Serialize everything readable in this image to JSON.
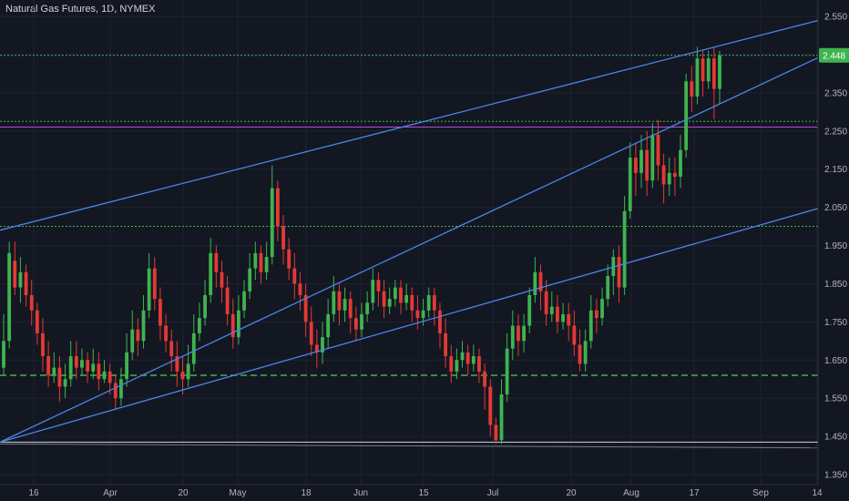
{
  "title": {
    "symbol": "Natural Gas Futures",
    "interval": "1D",
    "exchange": "NYMEX"
  },
  "colors": {
    "background": "#131722",
    "grid": "#1f2331",
    "up": "#26a69a",
    "up_bright": "#3fb34f",
    "down": "#e53935",
    "trendline": "#4a86e8",
    "hline_green": "#4caf50",
    "hline_magenta": "#b24bd6",
    "hline_white": "#d1d4dc",
    "price_tag": "#3fb34f"
  },
  "chart_data": {
    "type": "candlestick",
    "yaxis": {
      "ticks": [
        "2.550",
        "2.450",
        "2.350",
        "2.250",
        "2.150",
        "2.050",
        "1.950",
        "1.850",
        "1.750",
        "1.650",
        "1.550",
        "1.450",
        "1.350"
      ],
      "range": [
        1.33,
        2.58
      ]
    },
    "xaxis": {
      "ticks": [
        "16",
        "Apr",
        "20",
        "May",
        "18",
        "Jun",
        "15",
        "Jul",
        "20",
        "Aug",
        "17",
        "Sep",
        "14"
      ]
    },
    "last_price": "2.448",
    "candles": [
      [
        1.63,
        1.7,
        1.61,
        1.77
      ],
      [
        1.7,
        1.93,
        1.68,
        1.96
      ],
      [
        1.91,
        1.84,
        1.82,
        1.96
      ],
      [
        1.84,
        1.88,
        1.8,
        1.92
      ],
      [
        1.88,
        1.82,
        1.79,
        1.9
      ],
      [
        1.82,
        1.78,
        1.74,
        1.86
      ],
      [
        1.78,
        1.72,
        1.69,
        1.8
      ],
      [
        1.72,
        1.66,
        1.62,
        1.76
      ],
      [
        1.66,
        1.61,
        1.58,
        1.7
      ],
      [
        1.61,
        1.63,
        1.59,
        1.67
      ],
      [
        1.63,
        1.58,
        1.54,
        1.66
      ],
      [
        1.58,
        1.6,
        1.55,
        1.64
      ],
      [
        1.6,
        1.66,
        1.58,
        1.7
      ],
      [
        1.66,
        1.63,
        1.6,
        1.7
      ],
      [
        1.63,
        1.65,
        1.61,
        1.68
      ],
      [
        1.65,
        1.62,
        1.59,
        1.67
      ],
      [
        1.62,
        1.64,
        1.6,
        1.68
      ],
      [
        1.64,
        1.6,
        1.57,
        1.67
      ],
      [
        1.6,
        1.62,
        1.59,
        1.65
      ],
      [
        1.62,
        1.59,
        1.56,
        1.64
      ],
      [
        1.59,
        1.55,
        1.52,
        1.61
      ],
      [
        1.55,
        1.6,
        1.53,
        1.63
      ],
      [
        1.6,
        1.67,
        1.58,
        1.72
      ],
      [
        1.67,
        1.73,
        1.65,
        1.78
      ],
      [
        1.73,
        1.7,
        1.66,
        1.76
      ],
      [
        1.7,
        1.78,
        1.68,
        1.82
      ],
      [
        1.78,
        1.89,
        1.76,
        1.93
      ],
      [
        1.89,
        1.81,
        1.78,
        1.92
      ],
      [
        1.81,
        1.74,
        1.7,
        1.84
      ],
      [
        1.74,
        1.7,
        1.67,
        1.77
      ],
      [
        1.7,
        1.66,
        1.62,
        1.73
      ],
      [
        1.66,
        1.62,
        1.58,
        1.7
      ],
      [
        1.62,
        1.6,
        1.56,
        1.66
      ],
      [
        1.6,
        1.64,
        1.58,
        1.69
      ],
      [
        1.64,
        1.72,
        1.62,
        1.77
      ],
      [
        1.72,
        1.76,
        1.7,
        1.8
      ],
      [
        1.76,
        1.82,
        1.74,
        1.86
      ],
      [
        1.82,
        1.93,
        1.8,
        1.97
      ],
      [
        1.93,
        1.88,
        1.84,
        1.95
      ],
      [
        1.88,
        1.84,
        1.8,
        1.91
      ],
      [
        1.84,
        1.77,
        1.74,
        1.87
      ],
      [
        1.77,
        1.71,
        1.68,
        1.81
      ],
      [
        1.71,
        1.78,
        1.69,
        1.82
      ],
      [
        1.78,
        1.83,
        1.76,
        1.86
      ],
      [
        1.83,
        1.89,
        1.81,
        1.93
      ],
      [
        1.89,
        1.93,
        1.86,
        1.96
      ],
      [
        1.93,
        1.88,
        1.85,
        1.95
      ],
      [
        1.88,
        1.92,
        1.86,
        1.96
      ],
      [
        1.92,
        2.1,
        1.9,
        2.16
      ],
      [
        2.1,
        2.0,
        1.96,
        2.12
      ],
      [
        2.0,
        1.94,
        1.9,
        2.03
      ],
      [
        1.94,
        1.89,
        1.86,
        1.97
      ],
      [
        1.89,
        1.85,
        1.81,
        1.93
      ],
      [
        1.85,
        1.82,
        1.78,
        1.88
      ],
      [
        1.82,
        1.75,
        1.71,
        1.85
      ],
      [
        1.75,
        1.69,
        1.66,
        1.79
      ],
      [
        1.69,
        1.67,
        1.63,
        1.73
      ],
      [
        1.67,
        1.71,
        1.64,
        1.75
      ],
      [
        1.71,
        1.77,
        1.68,
        1.81
      ],
      [
        1.77,
        1.83,
        1.75,
        1.87
      ],
      [
        1.83,
        1.78,
        1.74,
        1.85
      ],
      [
        1.78,
        1.81,
        1.75,
        1.84
      ],
      [
        1.81,
        1.76,
        1.72,
        1.83
      ],
      [
        1.76,
        1.73,
        1.7,
        1.79
      ],
      [
        1.73,
        1.77,
        1.71,
        1.8
      ],
      [
        1.77,
        1.8,
        1.75,
        1.83
      ],
      [
        1.8,
        1.86,
        1.78,
        1.89
      ],
      [
        1.86,
        1.83,
        1.79,
        1.88
      ],
      [
        1.83,
        1.79,
        1.76,
        1.86
      ],
      [
        1.79,
        1.81,
        1.77,
        1.84
      ],
      [
        1.81,
        1.84,
        1.79,
        1.86
      ],
      [
        1.84,
        1.8,
        1.77,
        1.86
      ],
      [
        1.8,
        1.82,
        1.78,
        1.85
      ],
      [
        1.82,
        1.78,
        1.75,
        1.84
      ],
      [
        1.78,
        1.76,
        1.73,
        1.82
      ],
      [
        1.76,
        1.78,
        1.74,
        1.81
      ],
      [
        1.78,
        1.82,
        1.76,
        1.84
      ],
      [
        1.82,
        1.78,
        1.74,
        1.84
      ],
      [
        1.78,
        1.72,
        1.68,
        1.8
      ],
      [
        1.72,
        1.66,
        1.63,
        1.76
      ],
      [
        1.66,
        1.62,
        1.59,
        1.69
      ],
      [
        1.62,
        1.65,
        1.6,
        1.68
      ],
      [
        1.65,
        1.67,
        1.63,
        1.7
      ],
      [
        1.67,
        1.64,
        1.61,
        1.69
      ],
      [
        1.64,
        1.66,
        1.62,
        1.69
      ],
      [
        1.66,
        1.62,
        1.59,
        1.68
      ],
      [
        1.62,
        1.58,
        1.52,
        1.64
      ],
      [
        1.58,
        1.48,
        1.45,
        1.6
      ],
      [
        1.48,
        1.44,
        1.43,
        1.5
      ],
      [
        1.44,
        1.56,
        1.43,
        1.6
      ],
      [
        1.56,
        1.68,
        1.54,
        1.72
      ],
      [
        1.68,
        1.74,
        1.65,
        1.78
      ],
      [
        1.74,
        1.7,
        1.66,
        1.77
      ],
      [
        1.7,
        1.74,
        1.67,
        1.77
      ],
      [
        1.74,
        1.82,
        1.72,
        1.84
      ],
      [
        1.82,
        1.88,
        1.8,
        1.92
      ],
      [
        1.88,
        1.83,
        1.78,
        1.9
      ],
      [
        1.83,
        1.77,
        1.74,
        1.86
      ],
      [
        1.77,
        1.79,
        1.75,
        1.83
      ],
      [
        1.79,
        1.75,
        1.72,
        1.82
      ],
      [
        1.75,
        1.77,
        1.73,
        1.8
      ],
      [
        1.77,
        1.74,
        1.7,
        1.8
      ],
      [
        1.74,
        1.69,
        1.66,
        1.78
      ],
      [
        1.69,
        1.64,
        1.62,
        1.73
      ],
      [
        1.64,
        1.7,
        1.62,
        1.73
      ],
      [
        1.7,
        1.78,
        1.68,
        1.82
      ],
      [
        1.78,
        1.76,
        1.72,
        1.81
      ],
      [
        1.76,
        1.81,
        1.74,
        1.84
      ],
      [
        1.81,
        1.87,
        1.79,
        1.9
      ],
      [
        1.87,
        1.92,
        1.82,
        1.94
      ],
      [
        1.92,
        1.84,
        1.8,
        1.95
      ],
      [
        1.84,
        2.04,
        1.82,
        2.08
      ],
      [
        2.04,
        2.18,
        2.02,
        2.22
      ],
      [
        2.18,
        2.14,
        2.08,
        2.22
      ],
      [
        2.14,
        2.2,
        2.1,
        2.24
      ],
      [
        2.2,
        2.12,
        2.08,
        2.25
      ],
      [
        2.12,
        2.24,
        2.1,
        2.27
      ],
      [
        2.24,
        2.16,
        2.12,
        2.28
      ],
      [
        2.16,
        2.11,
        2.06,
        2.19
      ],
      [
        2.11,
        2.14,
        2.08,
        2.18
      ],
      [
        2.14,
        2.13,
        2.08,
        2.18
      ],
      [
        2.13,
        2.2,
        2.1,
        2.24
      ],
      [
        2.2,
        2.38,
        2.18,
        2.4
      ],
      [
        2.38,
        2.34,
        2.3,
        2.42
      ],
      [
        2.34,
        2.44,
        2.32,
        2.47
      ],
      [
        2.44,
        2.38,
        2.34,
        2.46
      ],
      [
        2.38,
        2.44,
        2.36,
        2.46
      ],
      [
        2.44,
        2.36,
        2.28,
        2.47
      ],
      [
        2.36,
        2.448,
        2.32,
        2.46
      ]
    ],
    "trendlines": [
      {
        "x0": 0,
        "y0": 1.99,
        "x1": 932,
        "y1": 2.56
      },
      {
        "x0": 0,
        "y0": 1.435,
        "x1": 932,
        "y1": 2.48
      },
      {
        "x0": 0,
        "y0": 1.435,
        "x1": 932,
        "y1": 2.07
      }
    ],
    "horizontal_lines": [
      {
        "y": 2.448,
        "style": "dotted",
        "color": "hline_green"
      },
      {
        "y": 2.275,
        "style": "dotted",
        "color": "hline_green"
      },
      {
        "y": 2.26,
        "style": "solid",
        "color": "hline_magenta"
      },
      {
        "y": 2.0,
        "style": "dotted",
        "color": "hline_green"
      },
      {
        "y": 1.61,
        "style": "dashed",
        "color": "hline_green"
      },
      {
        "y": 1.435,
        "style": "solid",
        "color": "hline_white"
      }
    ]
  }
}
